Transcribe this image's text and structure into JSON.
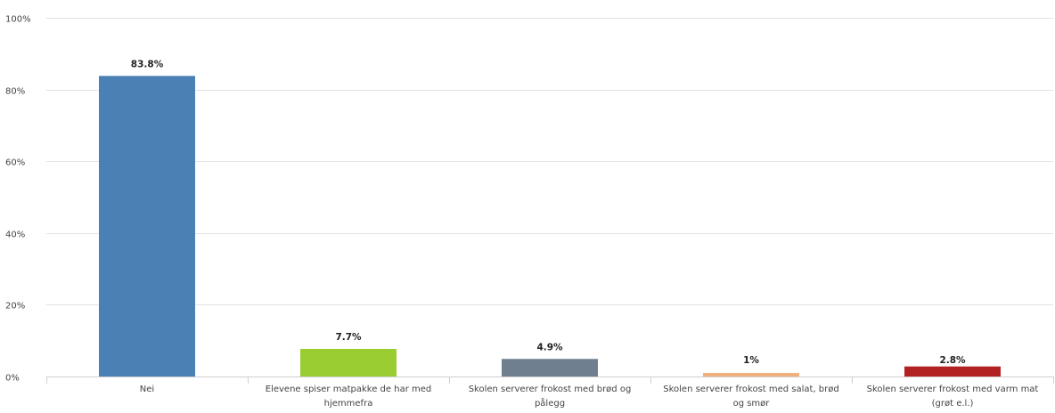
{
  "chart_data": {
    "type": "bar",
    "categories": [
      "Nei",
      "Elevene spiser matpakke de har med hjemmefra",
      "Skolen serverer frokost med brød og pålegg",
      "Skolen serverer frokost med salat, brød og smør",
      "Skolen serverer frokost med varm mat (grøt e.l.)"
    ],
    "category_lines": [
      [
        "Nei"
      ],
      [
        "Elevene spiser matpakke de har med",
        "hjemmefra"
      ],
      [
        "Skolen serverer frokost med brød og",
        "pålegg"
      ],
      [
        "Skolen serverer frokost med salat, brød",
        "og smør"
      ],
      [
        "Skolen serverer frokost med varm mat",
        "(grøt e.l.)"
      ]
    ],
    "values": [
      83.8,
      7.7,
      4.9,
      1,
      2.8
    ],
    "value_labels": [
      "83.8%",
      "7.7%",
      "4.9%",
      "1%",
      "2.8%"
    ],
    "colors": [
      "#4a81b5",
      "#9acd32",
      "#6f7f8f",
      "#f0b080",
      "#b22222"
    ],
    "yticks": [
      "0%",
      "20%",
      "40%",
      "60%",
      "80%",
      "100%"
    ],
    "ytick_values": [
      0,
      20,
      40,
      60,
      80,
      100
    ],
    "ylim": [
      0,
      100
    ],
    "grid": true,
    "title": "",
    "xlabel": "",
    "ylabel": ""
  }
}
